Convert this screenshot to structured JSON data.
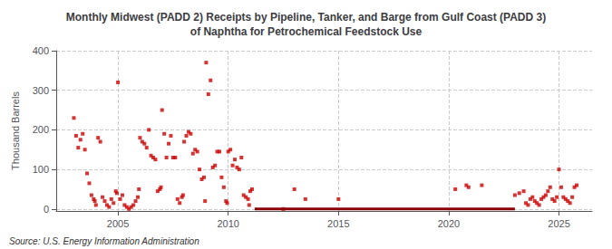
{
  "chart_data": {
    "type": "scatter",
    "title": "Monthly Midwest (PADD 2) Receipts by Pipeline, Tanker, and Barge from Gulf Coast (PADD 3)\nof Naphtha for Petrochemical Feedstock Use",
    "ylabel": "Thousand Barrels",
    "annotations": [
      "Source: U.S. Energy Information Administration"
    ],
    "xlim": [
      2002.2,
      2026.5
    ],
    "ylim": [
      -5,
      400
    ],
    "xticks": [
      2005,
      2010,
      2015,
      2020,
      2025
    ],
    "yticks": [
      0,
      100,
      200,
      300,
      400
    ],
    "grid": true,
    "series": [
      {
        "type": "scatter",
        "color": "#cc0000",
        "marker": "square",
        "x": [
          2003.0,
          2003.1,
          2003.2,
          2003.3,
          2003.4,
          2003.5,
          2003.6,
          2003.7,
          2003.8,
          2003.9,
          2003.95,
          2004.0,
          2004.1,
          2004.2,
          2004.3,
          2004.4,
          2004.5,
          2004.6,
          2004.7,
          2004.8,
          2004.9,
          2004.95,
          2005.0,
          2005.1,
          2005.2,
          2005.3,
          2005.4,
          2005.5,
          2005.6,
          2005.7,
          2005.8,
          2005.9,
          2005.95,
          2006.0,
          2006.1,
          2006.2,
          2006.3,
          2006.4,
          2006.5,
          2006.6,
          2006.7,
          2006.8,
          2006.9,
          2006.95,
          2007.0,
          2007.1,
          2007.2,
          2007.3,
          2007.4,
          2007.5,
          2007.6,
          2007.7,
          2007.8,
          2007.9,
          2007.95,
          2008.0,
          2008.1,
          2008.2,
          2008.3,
          2008.4,
          2008.5,
          2008.6,
          2008.7,
          2008.8,
          2008.9,
          2008.95,
          2009.0,
          2009.1,
          2009.2,
          2009.3,
          2009.4,
          2009.5,
          2009.6,
          2009.7,
          2009.8,
          2009.9,
          2009.95,
          2010.0,
          2010.1,
          2010.2,
          2010.3,
          2010.4,
          2010.5,
          2010.6,
          2010.7,
          2010.8,
          2010.9,
          2010.95,
          2011.0,
          2011.08,
          2012.5,
          2013.0,
          2013.5,
          2015.0,
          2020.3,
          2020.8,
          2020.9,
          2021.5,
          2023.0,
          2023.2,
          2023.4,
          2023.5,
          2023.6,
          2023.7,
          2023.8,
          2023.9,
          2024.0,
          2024.1,
          2024.2,
          2024.3,
          2024.4,
          2024.5,
          2024.6,
          2024.7,
          2024.8,
          2024.9,
          2025.0,
          2025.1,
          2025.2,
          2025.3,
          2025.4,
          2025.5,
          2025.6,
          2025.7,
          2025.8
        ],
        "values": [
          230,
          185,
          155,
          175,
          190,
          150,
          90,
          65,
          35,
          25,
          20,
          10,
          180,
          170,
          30,
          20,
          10,
          5,
          25,
          15,
          45,
          40,
          320,
          25,
          35,
          10,
          5,
          0,
          5,
          10,
          20,
          30,
          50,
          180,
          170,
          165,
          155,
          200,
          135,
          130,
          125,
          45,
          50,
          55,
          250,
          190,
          130,
          165,
          185,
          130,
          130,
          25,
          15,
          30,
          35,
          170,
          185,
          195,
          190,
          140,
          150,
          145,
          100,
          75,
          80,
          20,
          370,
          290,
          325,
          105,
          110,
          145,
          145,
          80,
          55,
          20,
          15,
          145,
          150,
          110,
          125,
          105,
          100,
          130,
          35,
          30,
          25,
          10,
          45,
          50,
          0,
          50,
          25,
          25,
          50,
          60,
          55,
          60,
          35,
          40,
          45,
          15,
          10,
          25,
          30,
          20,
          15,
          10,
          25,
          30,
          35,
          45,
          55,
          25,
          20,
          30,
          100,
          55,
          30,
          25,
          20,
          15,
          30,
          55,
          60
        ]
      },
      {
        "type": "line",
        "color": "#8b0000",
        "line_style": "solid",
        "x": [
          2011.2,
          2023.0
        ],
        "values": [
          0,
          0
        ]
      }
    ]
  }
}
